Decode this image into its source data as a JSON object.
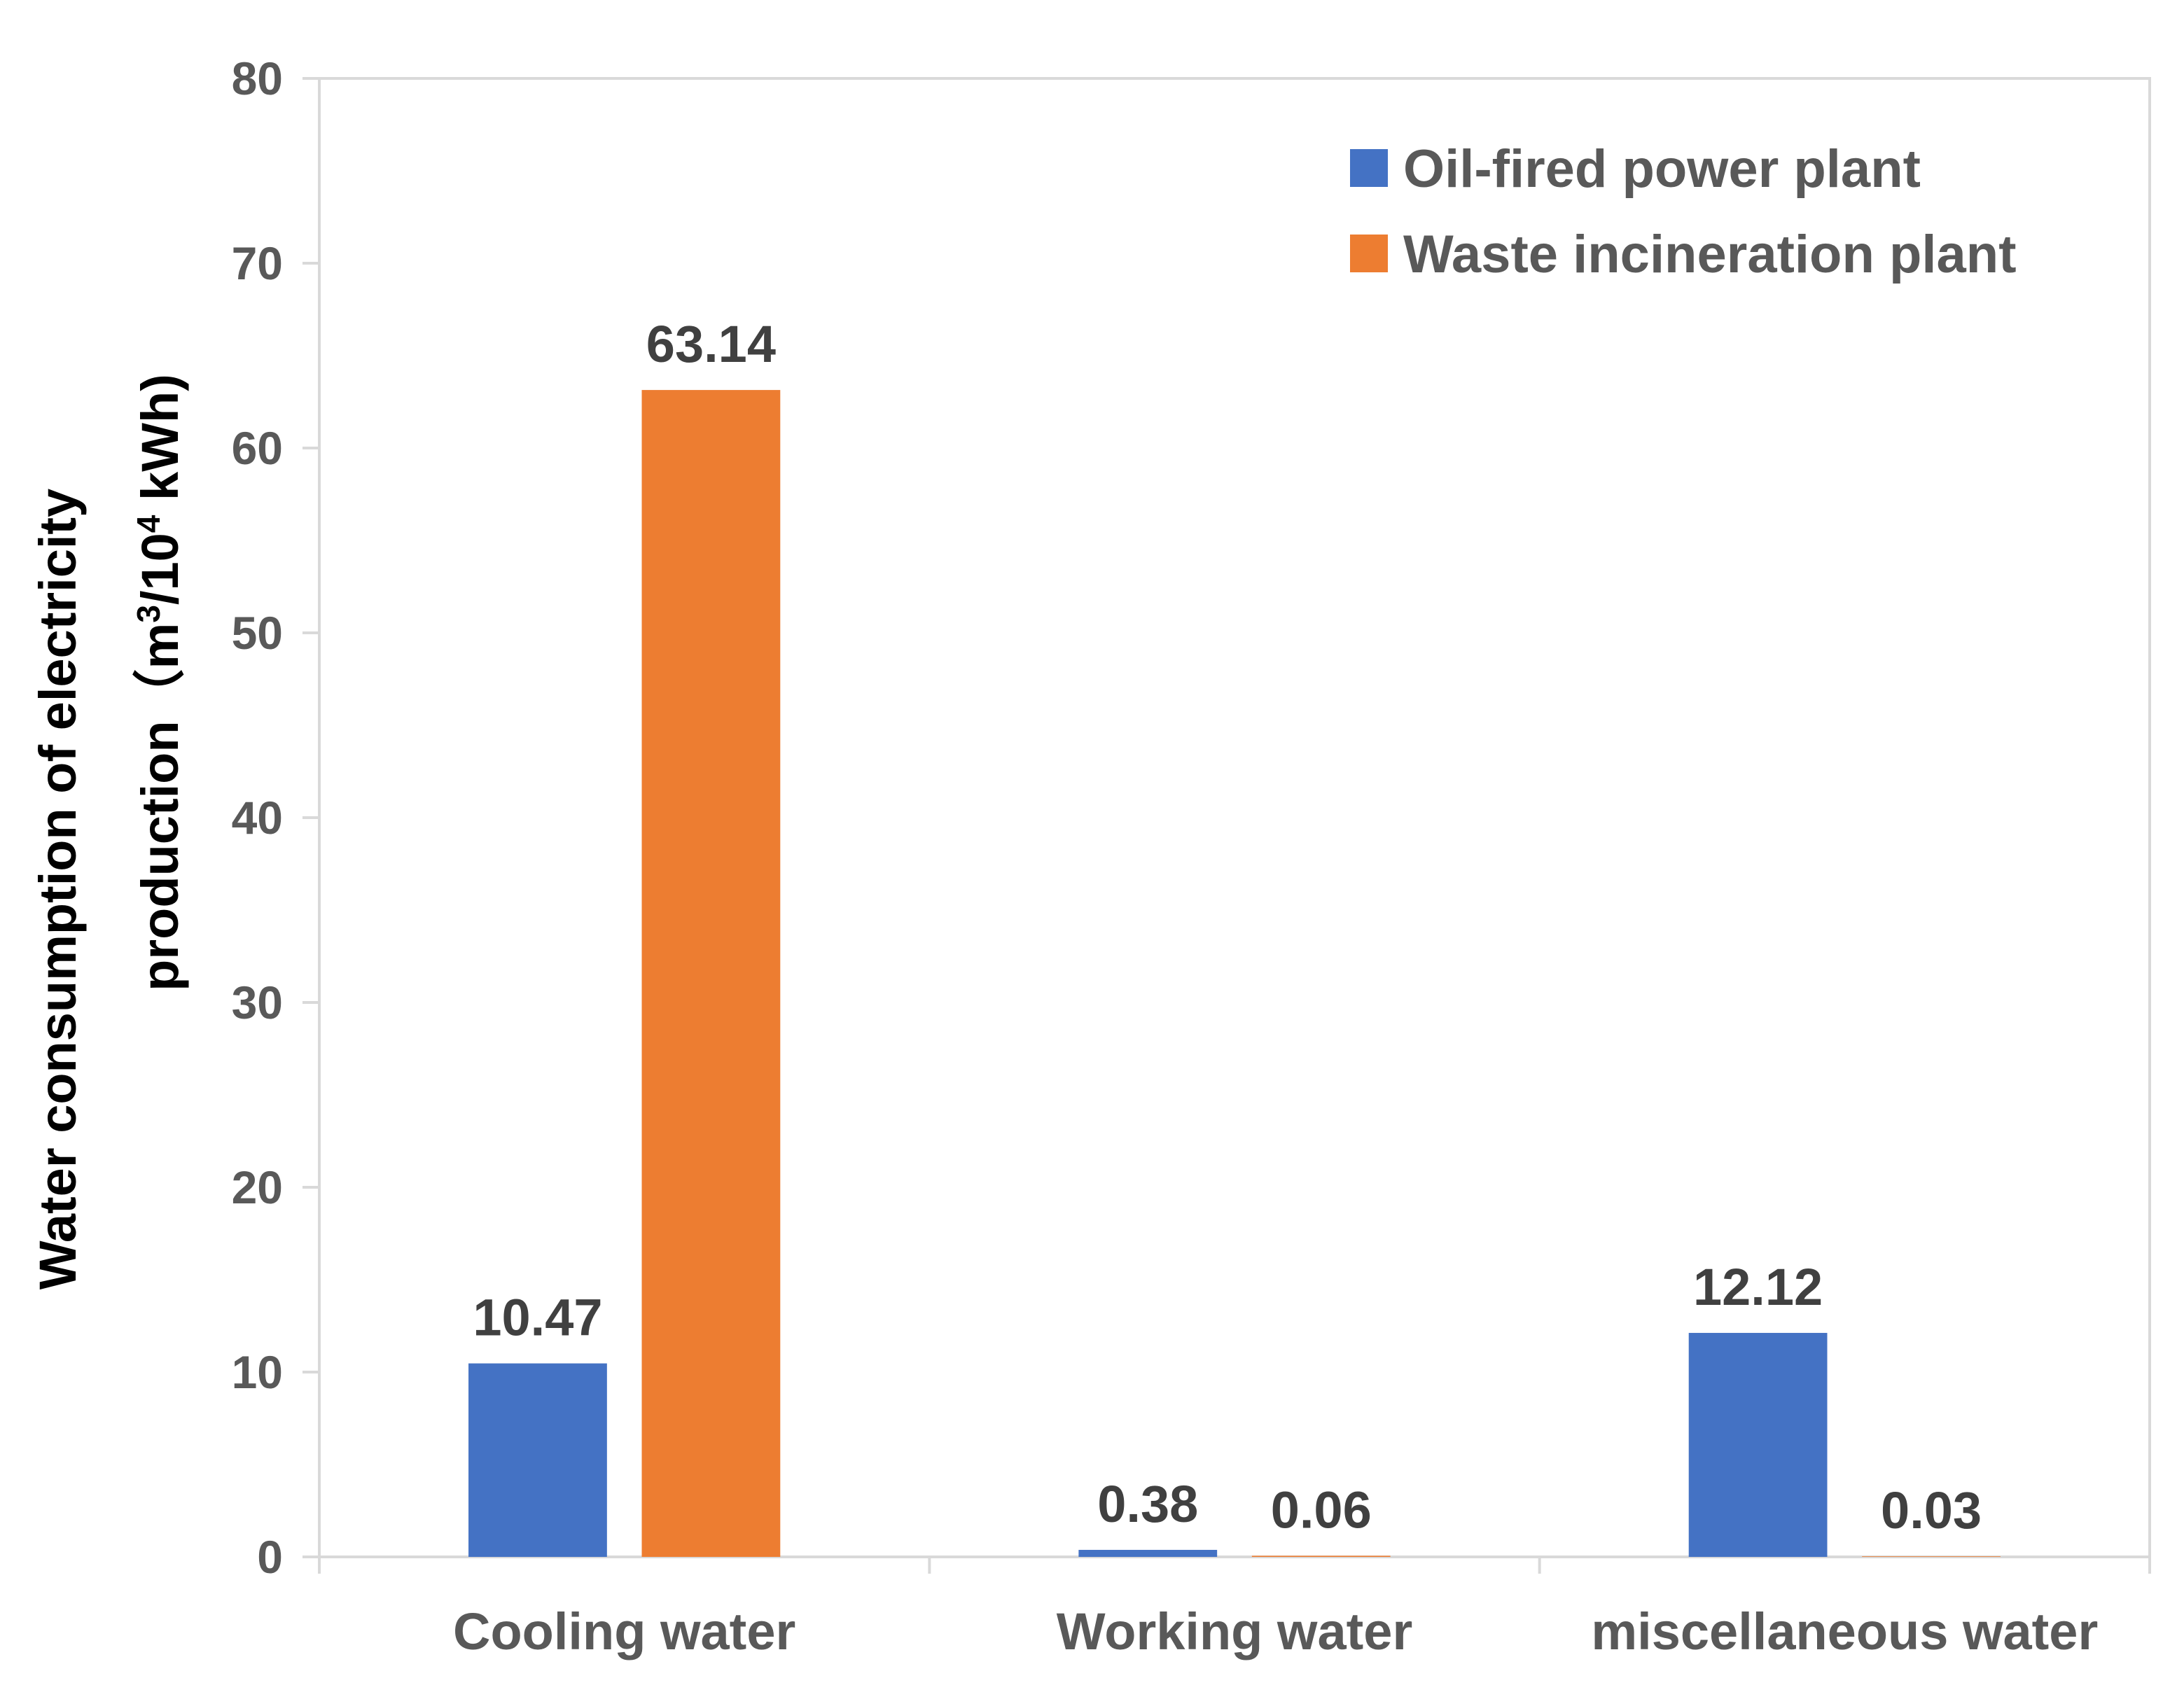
{
  "chart_data": {
    "type": "bar",
    "title": "",
    "xlabel": "",
    "ylabel_line1": "Water consumption of electricity",
    "ylabel_line2_prefix": "production（m",
    "ylabel_sup1": "3",
    "ylabel_mid": "/10",
    "ylabel_sup2": "4",
    "ylabel_suffix": " kWh)",
    "ylim": [
      0,
      80
    ],
    "yticks": [
      "0",
      "10",
      "20",
      "30",
      "40",
      "50",
      "60",
      "70",
      "80"
    ],
    "categories": [
      "Cooling water",
      "Working water",
      "miscellaneous water"
    ],
    "series": [
      {
        "name": "Oil-fired power plant",
        "color": "#4472C4",
        "values": [
          10.47,
          0.38,
          12.12
        ],
        "labels": [
          "10.47",
          "0.38",
          "12.12"
        ]
      },
      {
        "name": "Waste incineration plant",
        "color": "#ED7D31",
        "values": [
          63.14,
          0.06,
          0.03
        ],
        "labels": [
          "63.14",
          "0.06",
          "0.03"
        ]
      }
    ],
    "legend_position": "top-right",
    "grid": false
  }
}
